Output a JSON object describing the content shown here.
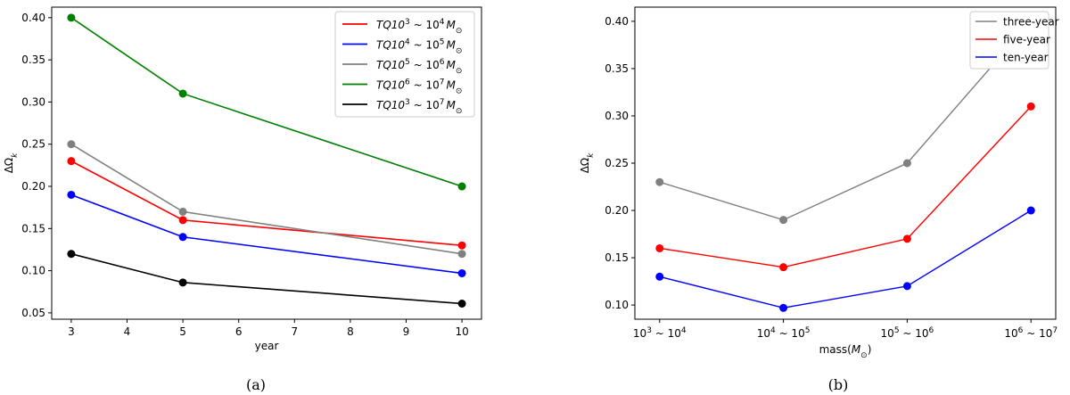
{
  "chart_data": [
    {
      "type": "line",
      "caption": "(a)",
      "xlabel": "year",
      "ylabel": "ΔΩ_k",
      "x": [
        3,
        5,
        10
      ],
      "xticks": [
        3,
        4,
        5,
        6,
        7,
        8,
        9,
        10
      ],
      "ylim": [
        0.05,
        0.4
      ],
      "yticks": [
        0.05,
        0.1,
        0.15,
        0.2,
        0.25,
        0.3,
        0.35,
        0.4
      ],
      "legend_position": "top-right",
      "grid": false,
      "series": [
        {
          "name": "TQ10^3 ~ 10^4 M_⊙",
          "legend_parts": [
            "TQ10",
            "3",
            " ~ 10",
            "4",
            "M",
            "⊙"
          ],
          "color": "#ff0000",
          "values": [
            0.23,
            0.16,
            0.13
          ]
        },
        {
          "name": "TQ10^4 ~ 10^5 M_⊙",
          "legend_parts": [
            "TQ10",
            "4",
            " ~ 10",
            "5",
            "M",
            "⊙"
          ],
          "color": "#0000ff",
          "values": [
            0.19,
            0.14,
            0.097
          ]
        },
        {
          "name": "TQ10^5 ~ 10^6 M_⊙",
          "legend_parts": [
            "TQ10",
            "5",
            " ~ 10",
            "6",
            "M",
            "⊙"
          ],
          "color": "#808080",
          "values": [
            0.25,
            0.17,
            0.12
          ]
        },
        {
          "name": "TQ10^6 ~ 10^7 M_⊙",
          "legend_parts": [
            "TQ10",
            "6",
            " ~ 10",
            "7",
            "M",
            "⊙"
          ],
          "color": "#008000",
          "values": [
            0.4,
            0.31,
            0.2
          ]
        },
        {
          "name": "TQ10^3 ~ 10^7 M_⊙",
          "legend_parts": [
            "TQ10",
            "3",
            " ~ 10",
            "7",
            "M",
            "⊙"
          ],
          "color": "#000000",
          "values": [
            0.12,
            0.086,
            0.061
          ]
        }
      ]
    },
    {
      "type": "line",
      "caption": "(b)",
      "xlabel": "mass(M_⊙)",
      "xlabel_parts": [
        "mass(",
        "M",
        "⊙",
        ")"
      ],
      "ylabel": "ΔΩ_k",
      "categories": [
        "10^3 ~ 10^4",
        "10^4 ~ 10^5",
        "10^5 ~ 10^6",
        "10^6 ~ 10^7"
      ],
      "category_parts": [
        [
          "10",
          "3",
          " ~ 10",
          "4"
        ],
        [
          "10",
          "4",
          " ~ 10",
          "5"
        ],
        [
          "10",
          "5",
          " ~ 10",
          "6"
        ],
        [
          "10",
          "6",
          " ~ 10",
          "7"
        ]
      ],
      "ylim": [
        0.085,
        0.415
      ],
      "yticks": [
        0.1,
        0.15,
        0.2,
        0.25,
        0.3,
        0.35,
        0.4
      ],
      "legend_position": "top-right",
      "grid": false,
      "series": [
        {
          "name": "three-year",
          "color": "#808080",
          "values": [
            0.23,
            0.19,
            0.25,
            0.4
          ]
        },
        {
          "name": "five-year",
          "color": "#ff0000",
          "values": [
            0.16,
            0.14,
            0.17,
            0.31
          ]
        },
        {
          "name": "ten-year",
          "color": "#0000ff",
          "values": [
            0.13,
            0.097,
            0.12,
            0.2
          ]
        }
      ]
    }
  ]
}
